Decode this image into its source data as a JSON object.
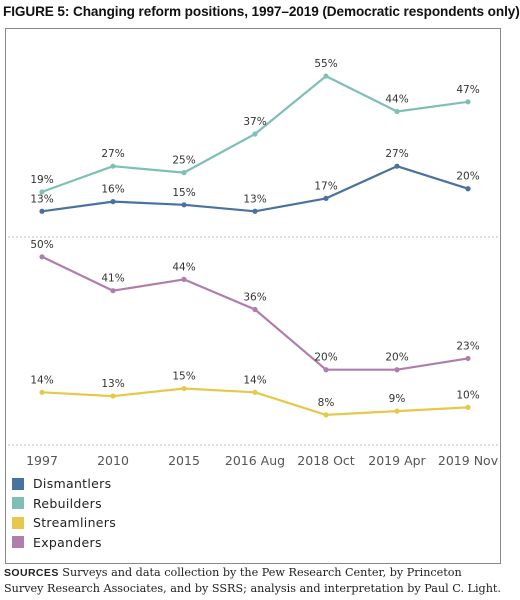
{
  "title": "FIGURE 5: Changing reform positions, 1997–2019 (Democratic respondents only)",
  "chart_data": {
    "type": "line",
    "categories": [
      "1997",
      "2010",
      "2015",
      "2016 Aug",
      "2018 Oct",
      "2019 Apr",
      "2019 Nov"
    ],
    "panels": [
      {
        "ylim": [
          5,
          60
        ],
        "series": [
          {
            "name": "Rebuilders",
            "color": "#7fbfb5",
            "values": [
              19,
              27,
              25,
              37,
              55,
              44,
              47
            ],
            "labels": [
              "19%",
              "27%",
              "25%",
              "37%",
              "55%",
              "44%",
              "47%"
            ]
          },
          {
            "name": "Dismantlers",
            "color": "#4a72a0",
            "values": [
              13,
              16,
              15,
              13,
              17,
              27,
              20
            ],
            "labels": [
              "13%",
              "16%",
              "15%",
              "13%",
              "17%",
              "27%",
              "20%"
            ]
          }
        ]
      },
      {
        "ylim": [
          0,
          55
        ],
        "series": [
          {
            "name": "Expanders",
            "color": "#b07eaa",
            "values": [
              50,
              41,
              44,
              36,
              20,
              20,
              23
            ],
            "labels": [
              "50%",
              "41%",
              "44%",
              "36%",
              "20%",
              "20%",
              "23%"
            ]
          },
          {
            "name": "Streamliners",
            "color": "#e6c84a",
            "values": [
              14,
              13,
              15,
              14,
              8,
              9,
              10
            ],
            "labels": [
              "14%",
              "13%",
              "15%",
              "14%",
              "8%",
              "9%",
              "10%"
            ]
          }
        ]
      }
    ],
    "grid": false
  },
  "legend": [
    {
      "name": "Dismantlers",
      "color": "#4a72a0"
    },
    {
      "name": "Rebuilders",
      "color": "#7fbfb5"
    },
    {
      "name": "Streamliners",
      "color": "#e6c84a"
    },
    {
      "name": "Expanders",
      "color": "#b07eaa"
    }
  ],
  "sources": {
    "label": "SOURCES",
    "text": "Surveys and data collection by the Pew Research Center, by Princeton Survey Research Associates, and by SSRS; analysis and interpretation by Paul C. Light."
  }
}
